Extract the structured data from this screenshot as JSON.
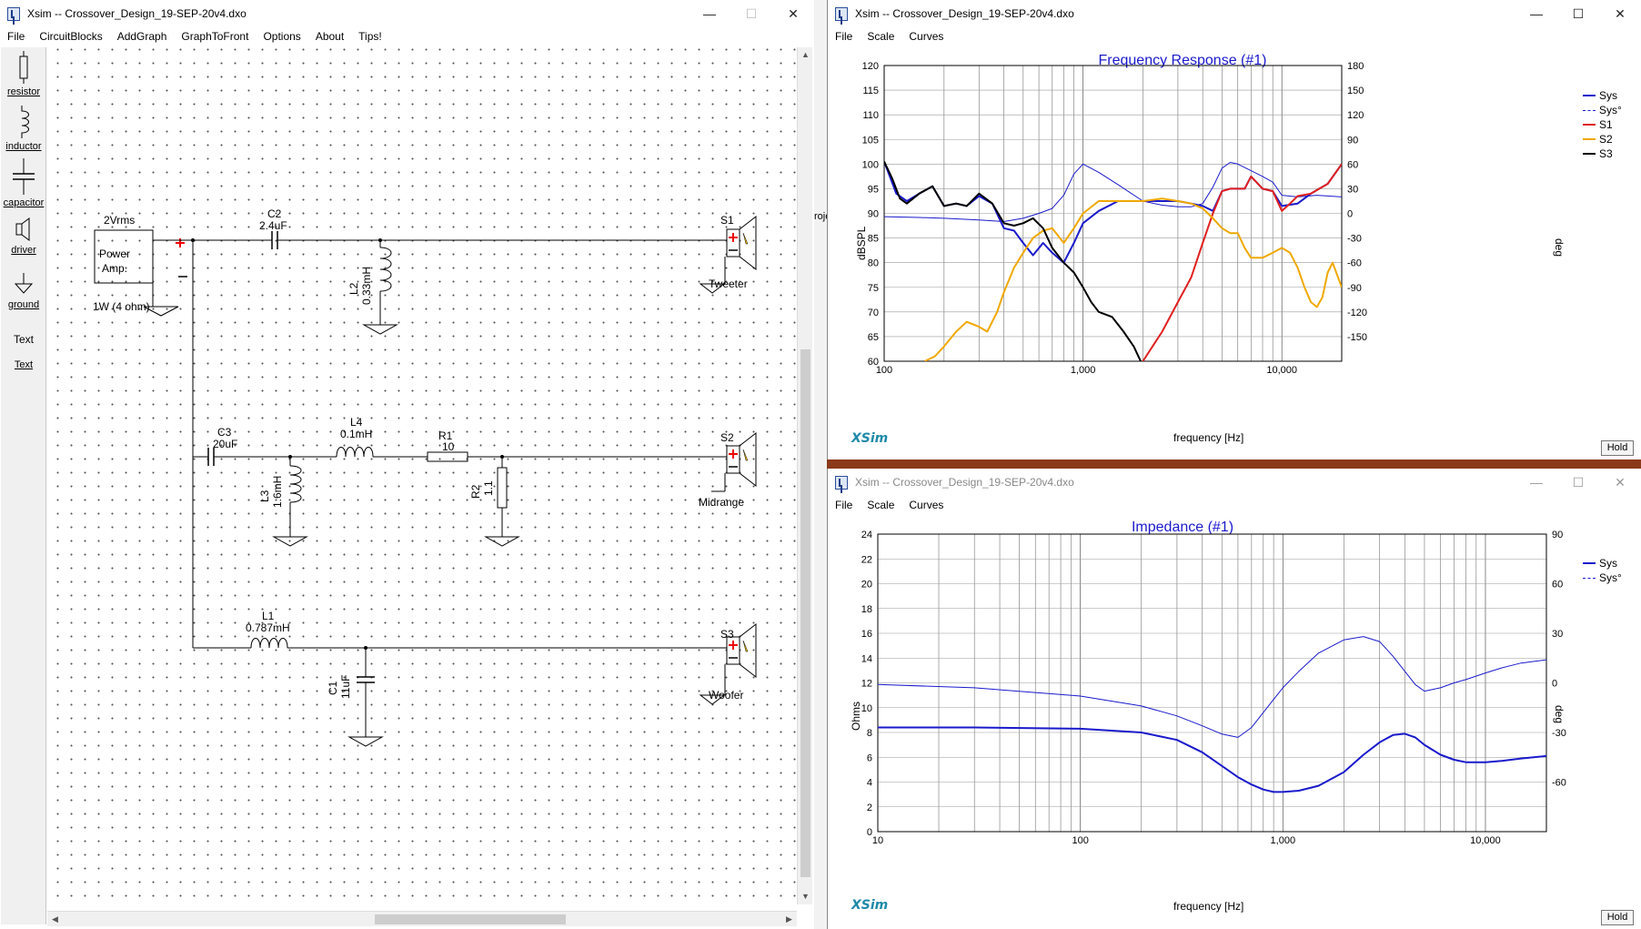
{
  "schematic_window": {
    "title": "Xsim -- Crossover_Design_19-SEP-20v4.dxo",
    "menu": [
      "File",
      "CircuitBlocks",
      "AddGraph",
      "GraphToFront",
      "Options",
      "About",
      "Tips!"
    ],
    "tools": [
      {
        "label": "resistor",
        "icon": "resistor-icon"
      },
      {
        "label": "inductor",
        "icon": "inductor-icon"
      },
      {
        "label": "capacitor",
        "icon": "capacitor-icon"
      },
      {
        "label": "driver",
        "icon": "driver-icon"
      },
      {
        "label": "ground",
        "icon": "ground-icon"
      },
      {
        "label": "Text",
        "icon": "text-icon"
      },
      {
        "label": "Text",
        "icon": "text-link"
      }
    ],
    "components": {
      "amp_level": "2Vrms",
      "amp_name_1": "Power",
      "amp_name_2": "Amp.",
      "amp_power": "1W (4 ohm)",
      "c2_name": "C2",
      "c2_value": "2.4uF",
      "l2_name": "L2",
      "l2_value": "0.33mH",
      "c3_name": "C3",
      "c3_value": "20uF",
      "l4_name": "L4",
      "l4_value": "0.1mH",
      "r1_name": "R1",
      "r1_value": "10",
      "l3_name": "L3",
      "l3_value": "1.6mH",
      "r2_name": "R2",
      "r2_value": "1.1",
      "l1_name": "L1",
      "l1_value": "0.787mH",
      "c1_name": "C1",
      "c1_value": "11uF",
      "s1_name": "S1",
      "s1_label": "Tweeter",
      "s2_name": "S2",
      "s2_label": "Midrange",
      "s3_name": "S3",
      "s3_label": "Woofer"
    }
  },
  "freq_window": {
    "title": "Xsim -- Crossover_Design_19-SEP-20v4.dxo",
    "menu": [
      "File",
      "Scale",
      "Curves"
    ],
    "hold_label": "Hold",
    "logo": "XSim",
    "partial_text": "roje"
  },
  "imp_window": {
    "title": "Xsim -- Crossover_Design_19-SEP-20v4.dxo",
    "menu": [
      "File",
      "Scale",
      "Curves"
    ],
    "hold_label": "Hold",
    "logo": "XSim"
  },
  "chart_data": [
    {
      "type": "line",
      "title": "Frequency Response (#1)",
      "xlabel": "frequency [Hz]",
      "ylabel": "dBSPL",
      "y2label": "deg",
      "xscale": "log",
      "xlim": [
        100,
        20000
      ],
      "ylim": [
        60,
        120
      ],
      "y2lim": [
        -180,
        180
      ],
      "xticks": [
        100,
        1000,
        10000
      ],
      "xtick_labels": [
        "100",
        "1,000",
        "10,000"
      ],
      "yticks": [
        60,
        65,
        70,
        75,
        80,
        85,
        90,
        95,
        100,
        105,
        110,
        115,
        120
      ],
      "y2ticks": [
        -150,
        -120,
        -90,
        -60,
        -30,
        0,
        30,
        60,
        90,
        120,
        150,
        180
      ],
      "legend_position": "right",
      "series": [
        {
          "name": "Sys",
          "color": "#1a1acc",
          "style": "solid",
          "axis": "left",
          "x": [
            100,
            115,
            130,
            150,
            175,
            200,
            230,
            260,
            300,
            350,
            400,
            450,
            500,
            560,
            630,
            700,
            800,
            900,
            1000,
            1200,
            1500,
            2000,
            2500,
            3000,
            3500,
            4000,
            4500,
            5000,
            5500,
            6000,
            6500,
            7000,
            8000,
            9000,
            10000,
            12000,
            14000,
            17000,
            20000
          ],
          "y": [
            100.5,
            94,
            92.5,
            94,
            95.5,
            91.5,
            92,
            91.5,
            93.5,
            92,
            87,
            86.5,
            84,
            81.5,
            84,
            82,
            80,
            84,
            88,
            90.5,
            92.5,
            92.5,
            92.5,
            92.5,
            92,
            91.5,
            90.5,
            94.5,
            95,
            95,
            95,
            97.5,
            95,
            94.5,
            91.5,
            92,
            94,
            96,
            100
          ]
        },
        {
          "name": "Sys°",
          "color": "#1a1acc",
          "style": "dashed",
          "axis": "right",
          "x": [
            100,
            150,
            200,
            300,
            400,
            500,
            600,
            700,
            800,
            900,
            1000,
            1200,
            1500,
            2000,
            2500,
            3000,
            3500,
            4000,
            4500,
            5000,
            5500,
            6000,
            7000,
            8000,
            9000,
            10000,
            12000,
            15000,
            20000
          ],
          "y": [
            -4,
            -5,
            -6,
            -8,
            -10,
            -6,
            0,
            6,
            22,
            48,
            60,
            50,
            35,
            15,
            10,
            8,
            8,
            12,
            32,
            55,
            62,
            60,
            52,
            45,
            38,
            22,
            20,
            22,
            20
          ]
        },
        {
          "name": "S1",
          "color": "#e02020",
          "style": "solid",
          "axis": "left",
          "x": [
            2000,
            2500,
            3000,
            3500,
            4000,
            4500,
            5000,
            5500,
            6000,
            6500,
            7000,
            8000,
            9000,
            10000,
            11000,
            12000,
            14000,
            17000,
            20000
          ],
          "y": [
            60,
            66,
            72,
            77,
            84,
            90,
            94.5,
            95,
            95,
            95,
            97.5,
            95,
            94.5,
            90.5,
            92,
            93.5,
            94,
            96,
            100
          ]
        },
        {
          "name": "S2",
          "color": "#f0a800",
          "style": "solid",
          "axis": "left",
          "x": [
            160,
            180,
            200,
            230,
            260,
            300,
            330,
            370,
            400,
            450,
            500,
            560,
            630,
            700,
            800,
            900,
            1000,
            1200,
            1500,
            2000,
            2500,
            3000,
            3500,
            4000,
            4500,
            5000,
            5500,
            6000,
            6500,
            7000,
            8000,
            9000,
            10000,
            11000,
            12000,
            13000,
            14000,
            15000,
            16000,
            17000,
            18000,
            20000
          ],
          "y": [
            60,
            61,
            63,
            66,
            68,
            67,
            66,
            70,
            74,
            79,
            82,
            85,
            86.5,
            87,
            84,
            87,
            90,
            92.5,
            92.5,
            92.5,
            93,
            92.5,
            92,
            91,
            89,
            87,
            86,
            86,
            83,
            81,
            81,
            82,
            83,
            82,
            79,
            75,
            72,
            71,
            73,
            78,
            80,
            75
          ]
        },
        {
          "name": "S3",
          "color": "#000000",
          "style": "solid",
          "axis": "left",
          "x": [
            100,
            110,
            120,
            130,
            150,
            175,
            200,
            230,
            260,
            300,
            350,
            400,
            450,
            500,
            560,
            630,
            700,
            800,
            900,
            1000,
            1100,
            1200,
            1400,
            1600,
            1800,
            1950
          ],
          "y": [
            100.5,
            97,
            93,
            92,
            94,
            95.5,
            91.5,
            92,
            91.5,
            94,
            92,
            88,
            87.5,
            88,
            89,
            87,
            83,
            80,
            78,
            75,
            72,
            70,
            69,
            66,
            63,
            60
          ]
        }
      ]
    },
    {
      "type": "line",
      "title": "Impedance (#1)",
      "xlabel": "frequency [Hz]",
      "ylabel": "Ohms",
      "y2label": "deg",
      "xscale": "log",
      "xlim": [
        10,
        20000
      ],
      "ylim": [
        0,
        24
      ],
      "y2lim": [
        -90,
        90
      ],
      "xticks": [
        10,
        100,
        1000,
        10000
      ],
      "xtick_labels": [
        "10",
        "100",
        "1,000",
        "10,000"
      ],
      "yticks": [
        0,
        2,
        4,
        6,
        8,
        10,
        12,
        14,
        16,
        18,
        20,
        22,
        24
      ],
      "y2ticks": [
        -60,
        -30,
        0,
        30,
        60,
        90
      ],
      "legend_position": "right",
      "series": [
        {
          "name": "Sys",
          "color": "#1a1acc",
          "style": "solid",
          "axis": "left",
          "x": [
            10,
            30,
            100,
            200,
            300,
            400,
            500,
            600,
            700,
            800,
            900,
            1000,
            1200,
            1500,
            2000,
            2500,
            3000,
            3500,
            4000,
            4500,
            5000,
            6000,
            7000,
            8000,
            10000,
            12000,
            15000,
            20000
          ],
          "y": [
            8.4,
            8.4,
            8.3,
            8.0,
            7.4,
            6.4,
            5.3,
            4.4,
            3.8,
            3.4,
            3.2,
            3.2,
            3.3,
            3.7,
            4.8,
            6.2,
            7.2,
            7.8,
            7.9,
            7.6,
            7.0,
            6.2,
            5.8,
            5.6,
            5.6,
            5.7,
            5.9,
            6.1
          ]
        },
        {
          "name": "Sys°",
          "color": "#1a1acc",
          "style": "dashed",
          "axis": "right",
          "x": [
            10,
            30,
            100,
            200,
            300,
            400,
            500,
            600,
            700,
            800,
            900,
            1000,
            1200,
            1500,
            2000,
            2500,
            3000,
            3500,
            4000,
            4500,
            5000,
            6000,
            7000,
            8000,
            10000,
            12000,
            15000,
            20000
          ],
          "y": [
            -1,
            -3,
            -8,
            -14,
            -20,
            -26,
            -31,
            -33,
            -27,
            -18,
            -10,
            -3,
            7,
            18,
            26,
            28,
            25,
            16,
            7,
            -1,
            -5,
            -3,
            0,
            2,
            6,
            9,
            12,
            14
          ]
        }
      ]
    }
  ]
}
